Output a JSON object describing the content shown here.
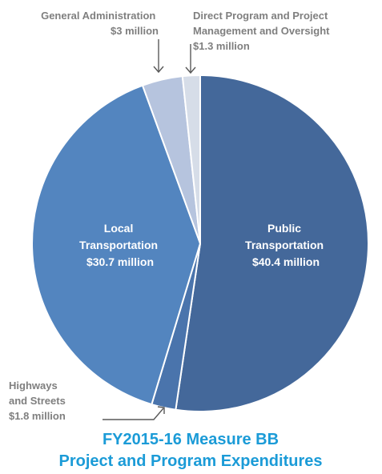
{
  "chart_data": {
    "type": "pie",
    "title": [
      "FY2015-16 Measure BB",
      "Project and  Program Expenditures"
    ],
    "title_color": "#1b9bd7",
    "unit": "$ million",
    "slices": [
      {
        "name": "Public Transportation",
        "value": 40.4,
        "color": "#44689a",
        "label_lines": [
          "Public",
          "Transportation",
          "$40.4 million"
        ]
      },
      {
        "name": "Highways and Streets",
        "value": 1.8,
        "color": "#4a74ac",
        "label_lines": [
          "Highways",
          "and Streets",
          "$1.8 million"
        ]
      },
      {
        "name": "Local Transportation",
        "value": 30.7,
        "color": "#5385bf",
        "label_lines": [
          "Local",
          "Transportation",
          "$30.7 million"
        ]
      },
      {
        "name": "General Administration",
        "value": 3,
        "color": "#b6c4de",
        "label_lines": [
          "General Administration",
          "$3 million"
        ]
      },
      {
        "name": "Direct Program and Project Management and Oversight",
        "value": 1.3,
        "color": "#d6dde8",
        "label_lines": [
          "Direct Program and Project",
          "Management and Oversight",
          "$1.3 million"
        ]
      }
    ]
  }
}
